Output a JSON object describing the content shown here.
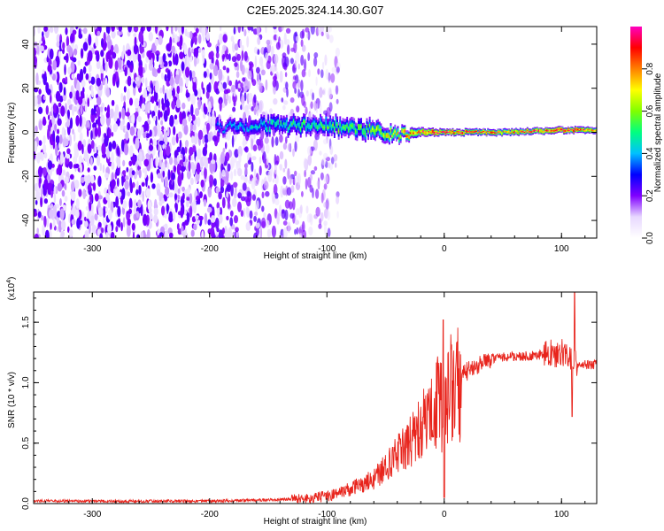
{
  "title": "C2E5.2025.324.14.30.G07",
  "chart_data": [
    {
      "type": "heatmap",
      "name": "spectrogram",
      "xlabel": "Height of straight line (km)",
      "ylabel": "Frequency (Hz)",
      "xlim": [
        -350,
        130
      ],
      "ylim": [
        -48,
        48
      ],
      "xticks": [
        -300,
        -200,
        -100,
        0,
        100
      ],
      "yticks": [
        -40,
        -20,
        0,
        20,
        40
      ],
      "xtick_labels": [
        "-300",
        "-200",
        "-100",
        "0",
        "100"
      ],
      "ytick_labels": [
        "-40",
        "-20",
        "0",
        "20",
        "40"
      ],
      "colorbar": {
        "label": "Normalized spectral amplitude",
        "range": [
          0.0,
          1.0
        ],
        "ticks": [
          0.0,
          0.2,
          0.4,
          0.6,
          0.8
        ],
        "tick_labels": [
          "0.0",
          "0.2",
          "0.4",
          "0.6",
          "0.8"
        ],
        "colors": [
          "#ffffff",
          "#e8d8ff",
          "#8000ff",
          "#0000ff",
          "#00c0ff",
          "#00ff80",
          "#80ff00",
          "#ffff00",
          "#ff8000",
          "#ff0000",
          "#ff00c0"
        ]
      },
      "features": {
        "noise_region_x": [
          -350,
          -110
        ],
        "carrier_band": [
          {
            "x": -195,
            "f": 2,
            "width": 5,
            "amp": 0.3
          },
          {
            "x": -150,
            "f": 3,
            "width": 7,
            "amp": 0.4
          },
          {
            "x": -100,
            "f": 3,
            "width": 8,
            "amp": 0.45
          },
          {
            "x": -60,
            "f": 1,
            "width": 8,
            "amp": 0.5
          },
          {
            "x": -40,
            "f": -1,
            "width": 6,
            "amp": 0.6
          },
          {
            "x": -20,
            "f": 0,
            "width": 4,
            "amp": 0.75
          },
          {
            "x": 0,
            "f": 0,
            "width": 3,
            "amp": 0.8
          },
          {
            "x": 50,
            "f": 0,
            "width": 3,
            "amp": 0.7
          },
          {
            "x": 100,
            "f": 1,
            "width": 3,
            "amp": 0.8
          },
          {
            "x": 130,
            "f": 1,
            "width": 3,
            "amp": 0.7
          }
        ]
      }
    },
    {
      "type": "line",
      "name": "snr",
      "xlabel": "Height of straight line (km)",
      "ylabel": "SNR (10 * v/v)",
      "multiplier_label": "(x10",
      "multiplier_exp": "4",
      "multiplier_close": ")",
      "xlim": [
        -350,
        130
      ],
      "ylim": [
        0,
        1.75
      ],
      "xticks": [
        -300,
        -200,
        -100,
        0,
        100
      ],
      "yticks": [
        0.0,
        0.5,
        1.0,
        1.5
      ],
      "xtick_labels": [
        "-300",
        "-200",
        "-100",
        "0",
        "100"
      ],
      "ytick_labels": [
        "0.0",
        "0.5",
        "1.0",
        "1.5"
      ],
      "color": "#e8241c",
      "series": [
        {
          "name": "SNR",
          "x": [
            -350,
            -300,
            -250,
            -200,
            -150,
            -120,
            -100,
            -80,
            -60,
            -50,
            -40,
            -30,
            -20,
            -10,
            -5,
            0,
            5,
            10,
            20,
            30,
            40,
            50,
            60,
            70,
            80,
            90,
            100,
            105,
            110,
            115,
            120,
            130
          ],
          "y": [
            0.02,
            0.02,
            0.02,
            0.02,
            0.03,
            0.04,
            0.06,
            0.12,
            0.2,
            0.3,
            0.4,
            0.5,
            0.62,
            0.78,
            0.85,
            0.8,
            0.92,
            1.0,
            1.1,
            1.15,
            1.2,
            1.21,
            1.22,
            1.22,
            1.23,
            1.24,
            1.25,
            1.22,
            1.2,
            1.16,
            1.15,
            1.15
          ]
        }
      ],
      "spikes": [
        {
          "x": -1,
          "y": 1.52
        },
        {
          "x": 0,
          "y": 0.05
        },
        {
          "x": 109,
          "y": 0.72
        },
        {
          "x": 111,
          "y": 1.75
        }
      ]
    }
  ]
}
